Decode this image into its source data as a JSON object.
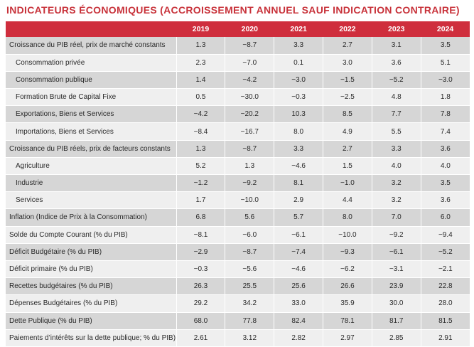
{
  "title": "INDICATEURS ÉCONOMIQUES (ACCROISSEMENT ANNUEL SAUF INDICATION CONTRAIRE)",
  "header": {
    "corner": "",
    "years": [
      "2019",
      "2020",
      "2021",
      "2022",
      "2023",
      "2024"
    ]
  },
  "rows": [
    {
      "label": "Croissance du PIB réel, prix de marché constants",
      "indent": false,
      "shaded": true,
      "values": [
        "1.3",
        "−8.7",
        "3.3",
        "2.7",
        "3.1",
        "3.5"
      ]
    },
    {
      "label": "Consommation privée",
      "indent": true,
      "shaded": false,
      "values": [
        "2.3",
        "−7.0",
        "0.1",
        "3.0",
        "3.6",
        "5.1"
      ]
    },
    {
      "label": "Consommation publique",
      "indent": true,
      "shaded": true,
      "values": [
        "1.4",
        "−4.2",
        "−3.0",
        "−1.5",
        "−5.2",
        "−3.0"
      ]
    },
    {
      "label": "Formation Brute de Capital Fixe",
      "indent": true,
      "shaded": false,
      "values": [
        "0.5",
        "−30.0",
        "−0.3",
        "−2.5",
        "4.8",
        "1.8"
      ]
    },
    {
      "label": "Exportations, Biens et Services",
      "indent": true,
      "shaded": true,
      "values": [
        "−4.2",
        "−20.2",
        "10.3",
        "8.5",
        "7.7",
        "7.8"
      ]
    },
    {
      "label": "Importations, Biens et Services",
      "indent": true,
      "shaded": false,
      "values": [
        "−8.4",
        "−16.7",
        "8.0",
        "4.9",
        "5.5",
        "7.4"
      ]
    },
    {
      "label": "Croissance du PIB réels, prix de facteurs constants",
      "indent": false,
      "shaded": true,
      "values": [
        "1.3",
        "−8.7",
        "3.3",
        "2.7",
        "3.3",
        "3.6"
      ]
    },
    {
      "label": "Agriculture",
      "indent": true,
      "shaded": false,
      "values": [
        "5.2",
        "1.3",
        "−4.6",
        "1.5",
        "4.0",
        "4.0"
      ]
    },
    {
      "label": "Industrie",
      "indent": true,
      "shaded": true,
      "values": [
        "−1.2",
        "−9.2",
        "8.1",
        "−1.0",
        "3.2",
        "3.5"
      ]
    },
    {
      "label": "Services",
      "indent": true,
      "shaded": false,
      "values": [
        "1.7",
        "−10.0",
        "2.9",
        "4.4",
        "3.2",
        "3.6"
      ]
    },
    {
      "label": "Inflation (Indice de Prix à la Consommation)",
      "indent": false,
      "shaded": true,
      "values": [
        "6.8",
        "5.6",
        "5.7",
        "8.0",
        "7.0",
        "6.0"
      ]
    },
    {
      "label": "Solde du Compte Courant (% du PIB)",
      "indent": false,
      "shaded": false,
      "values": [
        "−8.1",
        "−6.0",
        "−6.1",
        "−10.0",
        "−9.2",
        "−9.4"
      ]
    },
    {
      "label": "Déficit Budgétaire (% du PIB)",
      "indent": false,
      "shaded": true,
      "values": [
        "−2.9",
        "−8.7",
        "−7.4",
        "−9.3",
        "−6.1",
        "−5.2"
      ]
    },
    {
      "label": "Déficit primaire (% du PIB)",
      "indent": false,
      "shaded": false,
      "values": [
        "−0.3",
        "−5.6",
        "−4.6",
        "−6.2",
        "−3.1",
        "−2.1"
      ]
    },
    {
      "label": "Recettes budgétaires (% du PIB)",
      "indent": false,
      "shaded": true,
      "values": [
        "26.3",
        "25.5",
        "25.6",
        "26.6",
        "23.9",
        "22.8"
      ]
    },
    {
      "label": "Dépenses Budgétaires (% du PIB)",
      "indent": false,
      "shaded": false,
      "values": [
        "29.2",
        "34.2",
        "33.0",
        "35.9",
        "30.0",
        "28.0"
      ]
    },
    {
      "label": "Dette Publique (% du PIB)",
      "indent": false,
      "shaded": true,
      "values": [
        "68.0",
        "77.8",
        "82.4",
        "78.1",
        "81.7",
        "81.5"
      ]
    },
    {
      "label": "Paiements d’intérêts sur la dette publique; % du PIB)",
      "indent": false,
      "shaded": false,
      "values": [
        "2.61",
        "3.12",
        "2.82",
        "2.97",
        "2.85",
        "2.91"
      ]
    }
  ],
  "colors": {
    "header_bg": "#cf2e3d",
    "title": "#c8323a",
    "row_shaded": "#d6d6d6",
    "row_plain": "#efefef"
  }
}
